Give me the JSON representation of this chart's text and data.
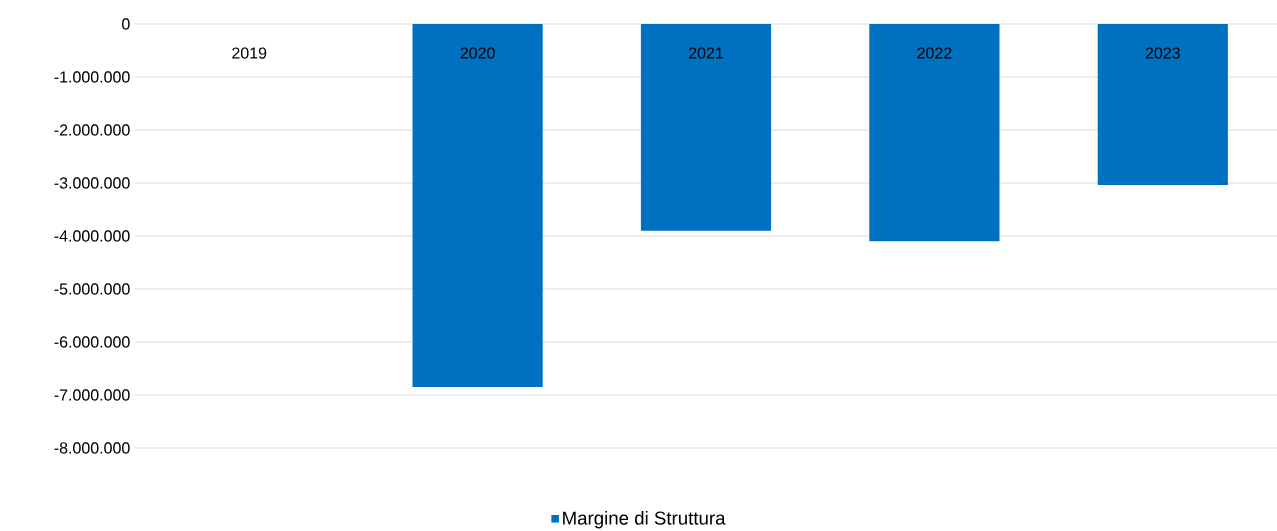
{
  "chart_data": {
    "type": "bar",
    "categories": [
      "2019",
      "2020",
      "2021",
      "2022",
      "2023"
    ],
    "series": [
      {
        "name": "Margine di Struttura",
        "color": "#0070c0",
        "values": [
          0,
          -6850000,
          -3900000,
          -4100000,
          -3040000
        ]
      }
    ],
    "ylim": [
      -8000000,
      0
    ],
    "yticks": [
      {
        "value": 0,
        "label": "0"
      },
      {
        "value": -1000000,
        "label": "-1.000.000"
      },
      {
        "value": -2000000,
        "label": "-2.000.000"
      },
      {
        "value": -3000000,
        "label": "-3.000.000"
      },
      {
        "value": -4000000,
        "label": "-4.000.000"
      },
      {
        "value": -5000000,
        "label": "-5.000.000"
      },
      {
        "value": -6000000,
        "label": "-6.000.000"
      },
      {
        "value": -7000000,
        "label": "-7.000.000"
      },
      {
        "value": -8000000,
        "label": "-8.000.000"
      }
    ],
    "grid": "y",
    "legend": "bottom"
  }
}
